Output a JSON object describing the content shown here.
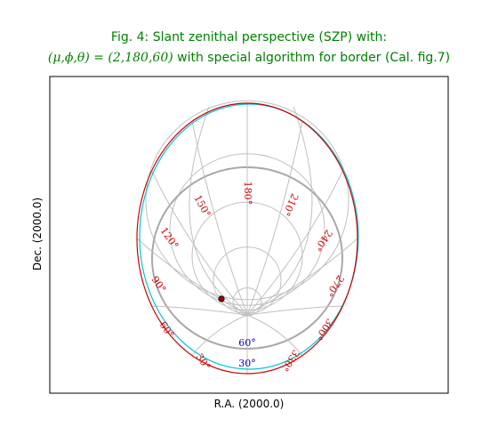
{
  "chart_data": {
    "type": "graticule",
    "title_line1": "Fig. 4: Slant zenithal perspective (SZP) with:",
    "title_line2_math": "(μ,ϕ,θ) = (2,180,60)",
    "title_line2_text": " with special algorithm for border (Cal. fig.7)",
    "xlabel": "R.A. (2000.0)",
    "ylabel": "Dec. (2000.0)",
    "projection": "SZP",
    "parameters": {
      "mu": 2,
      "phi": 180,
      "theta": 60
    },
    "longitude_labels": [
      {
        "text": "30°",
        "value": 30
      },
      {
        "text": "60°",
        "value": 60
      },
      {
        "text": "90°",
        "value": 90
      },
      {
        "text": "120°",
        "value": 120
      },
      {
        "text": "150°",
        "value": 150
      },
      {
        "text": "180°",
        "value": 180
      },
      {
        "text": "210°",
        "value": 210
      },
      {
        "text": "240°",
        "value": 240
      },
      {
        "text": "270°",
        "value": 270
      },
      {
        "text": "300°",
        "value": 300
      },
      {
        "text": "330°",
        "value": 330
      }
    ],
    "latitude_labels": [
      {
        "text": "30°",
        "value": 30
      },
      {
        "text": "60°",
        "value": 60
      }
    ],
    "colors": {
      "title": "#008000",
      "grid": "#c0c0c0",
      "highlight_parallel": "#a8a8a8",
      "border_outer": "#d00000",
      "border_inner": "#00c8d0",
      "longitude_label": "#d00000",
      "latitude_label": "#0000cc",
      "marker": "#a00000"
    }
  }
}
